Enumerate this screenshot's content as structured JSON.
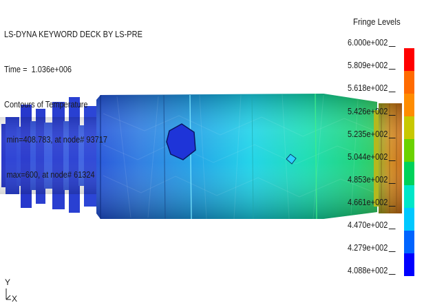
{
  "header": {
    "line1": "LS-DYNA KEYWORD DECK BY LS-PRE",
    "line2": "Time =  1.036e+006",
    "line3": "Contours of Temperature",
    "line4": "min=408.783, at node# 93717",
    "line5": "max=600, at node# 61324"
  },
  "fringe": {
    "title": "Fringe Levels",
    "levels": [
      "6.000e+002",
      "5.809e+002",
      "5.618e+002",
      "5.426e+002",
      "5.235e+002",
      "5.044e+002",
      "4.853e+002",
      "4.661e+002",
      "4.470e+002",
      "4.279e+002",
      "4.088e+002"
    ],
    "colors": [
      "#ff0000",
      "#ff6a00",
      "#ff8c00",
      "#c8c800",
      "#6ad200",
      "#00d25a",
      "#00e6c8",
      "#00c8ff",
      "#0064ff",
      "#0000ff"
    ]
  },
  "axes": {
    "y_label": "Y",
    "x_label": "X"
  }
}
